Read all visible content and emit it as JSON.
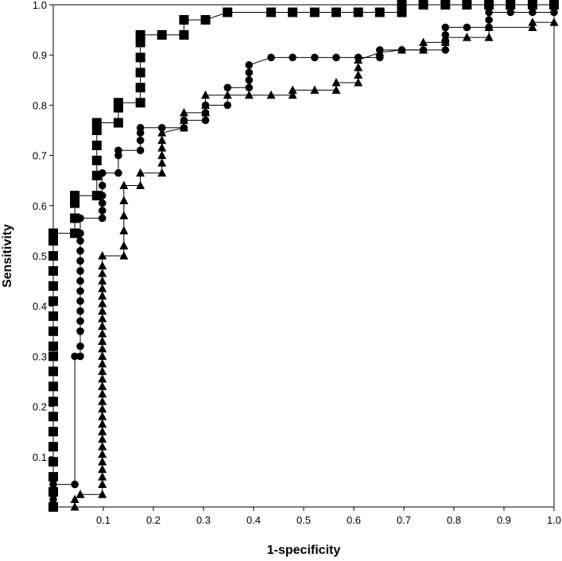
{
  "chart_data": {
    "type": "line",
    "title": "",
    "xlabel": "1-specificity",
    "ylabel": "Sensitivity",
    "xlim": [
      0,
      1
    ],
    "ylim": [
      0,
      1
    ],
    "grid": false,
    "legend": "none",
    "x_ticks": [
      "0.1",
      "0.2",
      "0.3",
      "0.4",
      "0.5",
      "0.6",
      "0.7",
      "0.8",
      "0.9",
      "1.0"
    ],
    "y_ticks": [
      "0.1",
      "0.2",
      "0.3",
      "0.4",
      "0.5",
      "0.6",
      "0.7",
      "0.8",
      "0.9",
      "1.0"
    ],
    "series": [
      {
        "marker": "square",
        "color": "#000000",
        "points": [
          [
            0,
            0
          ],
          [
            0,
            0.03
          ],
          [
            0,
            0.06
          ],
          [
            0,
            0.09
          ],
          [
            0,
            0.12
          ],
          [
            0,
            0.15
          ],
          [
            0,
            0.18
          ],
          [
            0,
            0.21
          ],
          [
            0,
            0.24
          ],
          [
            0,
            0.27
          ],
          [
            0,
            0.3
          ],
          [
            0,
            0.32
          ],
          [
            0,
            0.35
          ],
          [
            0,
            0.38
          ],
          [
            0,
            0.41
          ],
          [
            0,
            0.44
          ],
          [
            0,
            0.47
          ],
          [
            0,
            0.5
          ],
          [
            0,
            0.53
          ],
          [
            0,
            0.545
          ],
          [
            0.043,
            0.545
          ],
          [
            0.043,
            0.575
          ],
          [
            0.043,
            0.605
          ],
          [
            0.043,
            0.62
          ],
          [
            0.087,
            0.62
          ],
          [
            0.087,
            0.66
          ],
          [
            0.087,
            0.69
          ],
          [
            0.087,
            0.72
          ],
          [
            0.087,
            0.75
          ],
          [
            0.087,
            0.765
          ],
          [
            0.13,
            0.765
          ],
          [
            0.13,
            0.795
          ],
          [
            0.13,
            0.805
          ],
          [
            0.174,
            0.805
          ],
          [
            0.174,
            0.835
          ],
          [
            0.174,
            0.865
          ],
          [
            0.174,
            0.895
          ],
          [
            0.174,
            0.925
          ],
          [
            0.174,
            0.94
          ],
          [
            0.217,
            0.94
          ],
          [
            0.261,
            0.94
          ],
          [
            0.261,
            0.97
          ],
          [
            0.304,
            0.97
          ],
          [
            0.348,
            0.985
          ],
          [
            0.435,
            0.985
          ],
          [
            0.478,
            0.985
          ],
          [
            0.522,
            0.985
          ],
          [
            0.565,
            0.985
          ],
          [
            0.609,
            0.985
          ],
          [
            0.652,
            0.985
          ],
          [
            0.696,
            0.985
          ],
          [
            0.696,
            1.0
          ],
          [
            0.739,
            1.0
          ],
          [
            0.783,
            1.0
          ],
          [
            0.826,
            1.0
          ],
          [
            0.87,
            1.0
          ],
          [
            0.913,
            1.0
          ],
          [
            0.957,
            1.0
          ],
          [
            1.0,
            1.0
          ]
        ]
      },
      {
        "marker": "circle",
        "color": "#000000",
        "points": [
          [
            0,
            0
          ],
          [
            0,
            0.015
          ],
          [
            0,
            0.03
          ],
          [
            0,
            0.045
          ],
          [
            0.043,
            0.045
          ],
          [
            0.043,
            0.3
          ],
          [
            0.054,
            0.3
          ],
          [
            0.054,
            0.32
          ],
          [
            0.054,
            0.35
          ],
          [
            0.054,
            0.37
          ],
          [
            0.054,
            0.39
          ],
          [
            0.054,
            0.41
          ],
          [
            0.054,
            0.43
          ],
          [
            0.054,
            0.45
          ],
          [
            0.054,
            0.47
          ],
          [
            0.054,
            0.49
          ],
          [
            0.054,
            0.51
          ],
          [
            0.054,
            0.53
          ],
          [
            0.054,
            0.545
          ],
          [
            0.054,
            0.575
          ],
          [
            0.098,
            0.575
          ],
          [
            0.098,
            0.59
          ],
          [
            0.098,
            0.605
          ],
          [
            0.098,
            0.62
          ],
          [
            0.098,
            0.64
          ],
          [
            0.098,
            0.665
          ],
          [
            0.13,
            0.665
          ],
          [
            0.13,
            0.7
          ],
          [
            0.13,
            0.71
          ],
          [
            0.174,
            0.71
          ],
          [
            0.174,
            0.73
          ],
          [
            0.174,
            0.745
          ],
          [
            0.174,
            0.755
          ],
          [
            0.217,
            0.755
          ],
          [
            0.261,
            0.755
          ],
          [
            0.261,
            0.77
          ],
          [
            0.304,
            0.77
          ],
          [
            0.304,
            0.785
          ],
          [
            0.304,
            0.8
          ],
          [
            0.348,
            0.8
          ],
          [
            0.348,
            0.835
          ],
          [
            0.391,
            0.835
          ],
          [
            0.391,
            0.85
          ],
          [
            0.391,
            0.865
          ],
          [
            0.391,
            0.88
          ],
          [
            0.435,
            0.895
          ],
          [
            0.478,
            0.895
          ],
          [
            0.522,
            0.895
          ],
          [
            0.565,
            0.895
          ],
          [
            0.609,
            0.895
          ],
          [
            0.652,
            0.895
          ],
          [
            0.652,
            0.91
          ],
          [
            0.696,
            0.91
          ],
          [
            0.739,
            0.91
          ],
          [
            0.783,
            0.91
          ],
          [
            0.783,
            0.925
          ],
          [
            0.783,
            0.94
          ],
          [
            0.783,
            0.955
          ],
          [
            0.826,
            0.955
          ],
          [
            0.87,
            0.955
          ],
          [
            0.87,
            0.97
          ],
          [
            0.87,
            0.985
          ],
          [
            0.913,
            0.985
          ],
          [
            0.957,
            0.985
          ],
          [
            1.0,
            0.985
          ]
        ]
      },
      {
        "marker": "triangle",
        "color": "#000000",
        "points": [
          [
            0,
            0
          ],
          [
            0.043,
            0.0
          ],
          [
            0.043,
            0.015
          ],
          [
            0.054,
            0.025
          ],
          [
            0.098,
            0.025
          ],
          [
            0.098,
            0.045
          ],
          [
            0.098,
            0.06
          ],
          [
            0.098,
            0.075
          ],
          [
            0.098,
            0.09
          ],
          [
            0.098,
            0.105
          ],
          [
            0.098,
            0.12
          ],
          [
            0.098,
            0.135
          ],
          [
            0.098,
            0.15
          ],
          [
            0.098,
            0.165
          ],
          [
            0.098,
            0.18
          ],
          [
            0.098,
            0.195
          ],
          [
            0.098,
            0.21
          ],
          [
            0.098,
            0.225
          ],
          [
            0.098,
            0.24
          ],
          [
            0.098,
            0.255
          ],
          [
            0.098,
            0.27
          ],
          [
            0.098,
            0.285
          ],
          [
            0.098,
            0.3
          ],
          [
            0.098,
            0.315
          ],
          [
            0.098,
            0.33
          ],
          [
            0.098,
            0.345
          ],
          [
            0.098,
            0.36
          ],
          [
            0.098,
            0.375
          ],
          [
            0.098,
            0.39
          ],
          [
            0.098,
            0.405
          ],
          [
            0.098,
            0.42
          ],
          [
            0.098,
            0.435
          ],
          [
            0.098,
            0.45
          ],
          [
            0.098,
            0.465
          ],
          [
            0.098,
            0.48
          ],
          [
            0.098,
            0.5
          ],
          [
            0.141,
            0.5
          ],
          [
            0.141,
            0.52
          ],
          [
            0.141,
            0.55
          ],
          [
            0.141,
            0.58
          ],
          [
            0.141,
            0.61
          ],
          [
            0.141,
            0.64
          ],
          [
            0.174,
            0.64
          ],
          [
            0.174,
            0.665
          ],
          [
            0.217,
            0.665
          ],
          [
            0.217,
            0.685
          ],
          [
            0.217,
            0.7
          ],
          [
            0.217,
            0.715
          ],
          [
            0.217,
            0.73
          ],
          [
            0.217,
            0.745
          ],
          [
            0.261,
            0.755
          ],
          [
            0.261,
            0.77
          ],
          [
            0.261,
            0.785
          ],
          [
            0.304,
            0.785
          ],
          [
            0.304,
            0.8
          ],
          [
            0.304,
            0.82
          ],
          [
            0.348,
            0.82
          ],
          [
            0.391,
            0.82
          ],
          [
            0.435,
            0.82
          ],
          [
            0.478,
            0.82
          ],
          [
            0.478,
            0.83
          ],
          [
            0.522,
            0.83
          ],
          [
            0.565,
            0.83
          ],
          [
            0.565,
            0.845
          ],
          [
            0.609,
            0.845
          ],
          [
            0.609,
            0.86
          ],
          [
            0.609,
            0.875
          ],
          [
            0.609,
            0.89
          ],
          [
            0.652,
            0.905
          ],
          [
            0.696,
            0.91
          ],
          [
            0.739,
            0.91
          ],
          [
            0.739,
            0.925
          ],
          [
            0.783,
            0.925
          ],
          [
            0.783,
            0.935
          ],
          [
            0.826,
            0.935
          ],
          [
            0.87,
            0.935
          ],
          [
            0.87,
            0.955
          ],
          [
            0.957,
            0.955
          ],
          [
            0.957,
            0.965
          ],
          [
            1.0,
            0.965
          ]
        ]
      }
    ]
  }
}
